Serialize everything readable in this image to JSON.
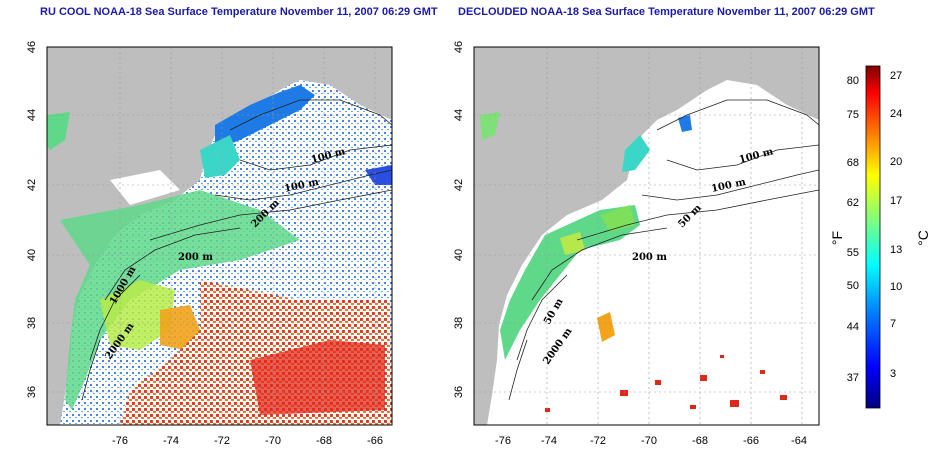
{
  "left_panel": {
    "title": "RU COOL NOAA-18 Sea Surface Temperature November 11, 2007 06:29 GMT",
    "contour_labels": [
      "100 m",
      "100 m",
      "200 m",
      "200 m",
      "1000 m",
      "2000 m"
    ]
  },
  "right_panel": {
    "title": "DECLOUDED NOAA-18 Sea Surface Temperature November 11, 2007 06:29 GMT",
    "contour_labels": [
      "100 m",
      "100 m",
      "50 m",
      "200 m",
      "50 m",
      "2000 m"
    ]
  },
  "map_axes": {
    "x_ticks": [
      "-76",
      "-74",
      "-72",
      "-70",
      "-68",
      "-66",
      "-64"
    ],
    "y_ticks": [
      "46",
      "44",
      "42",
      "40",
      "38",
      "36"
    ]
  },
  "colorbar": {
    "fahrenheit_label": "°F",
    "celsius_label": "°C",
    "fahrenheit_ticks": [
      "80",
      "75",
      "68",
      "62",
      "55",
      "50",
      "44",
      "37"
    ],
    "celsius_ticks": [
      "27",
      "24",
      "20",
      "17",
      "13",
      "10",
      "7",
      "3"
    ],
    "colors": [
      "#00007f",
      "#0000ff",
      "#007fff",
      "#00ffff",
      "#7fff7f",
      "#ffff00",
      "#ff7f00",
      "#ff0000",
      "#7f0000"
    ]
  }
}
